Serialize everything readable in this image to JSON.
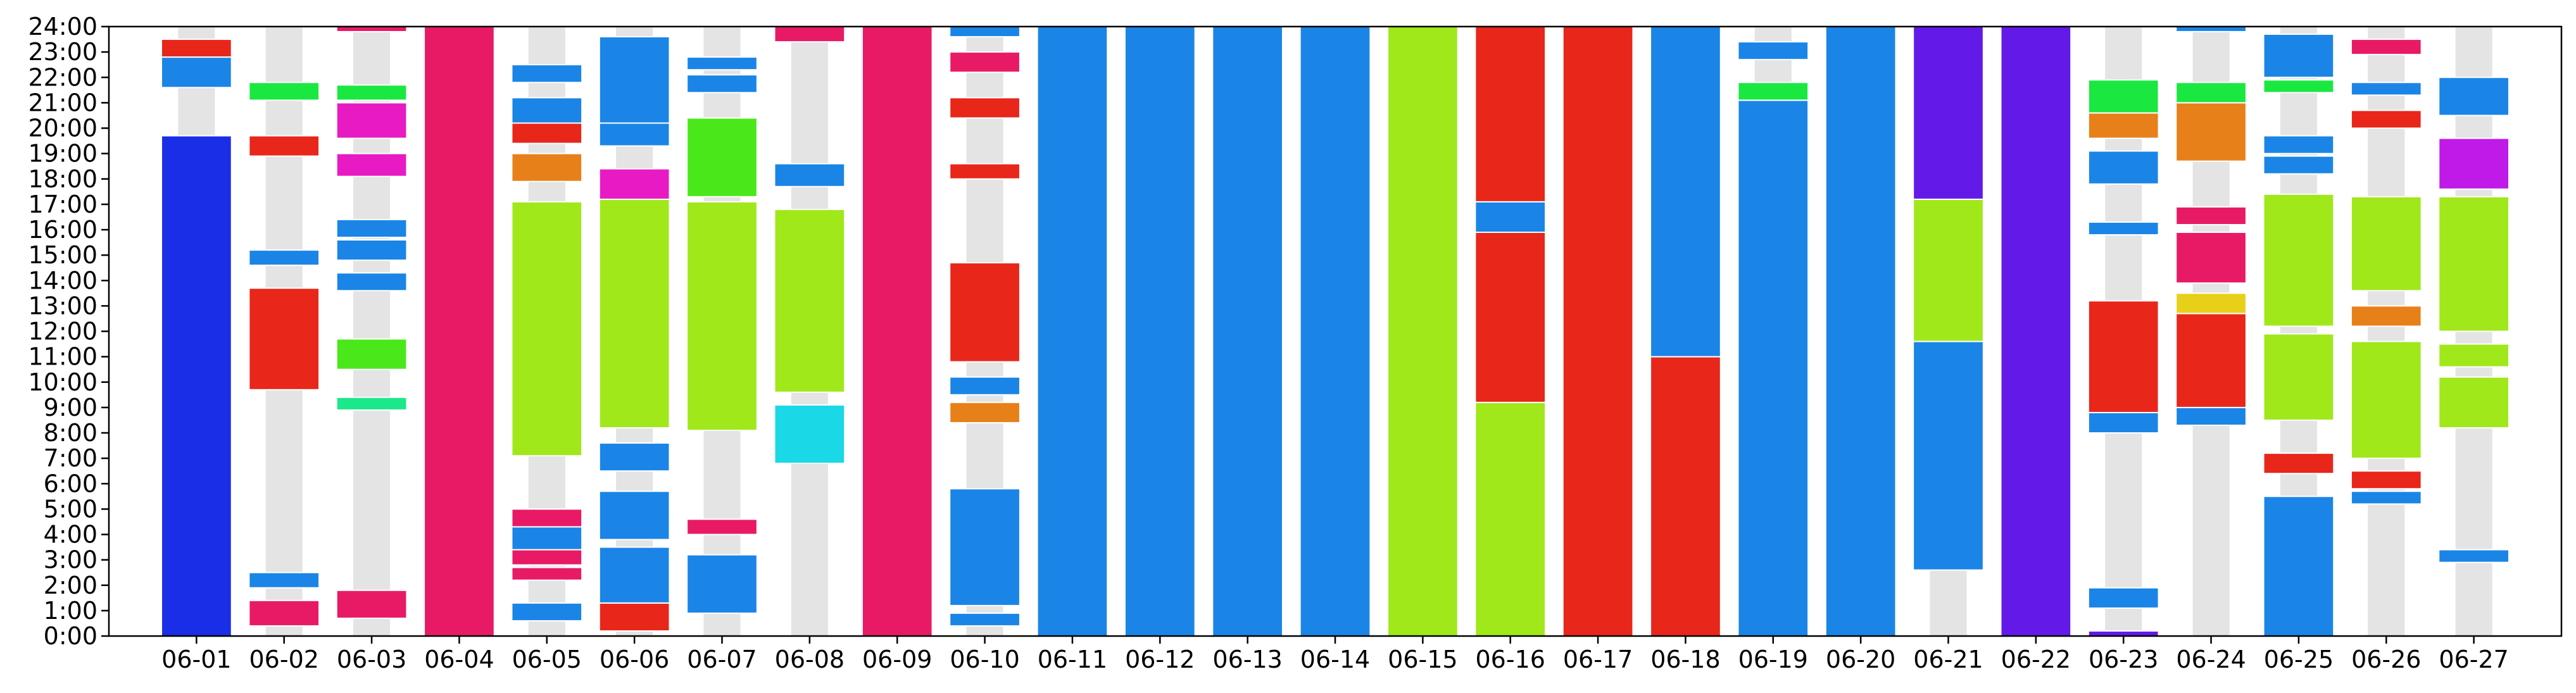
{
  "chart_data": {
    "type": "bar",
    "title": "",
    "xlabel": "",
    "ylabel": "",
    "ylim": [
      0,
      24
    ],
    "grid": false,
    "legend": "none",
    "track_color": "#e4e4e4",
    "categories": [
      "06-01",
      "06-02",
      "06-03",
      "06-04",
      "06-05",
      "06-06",
      "06-07",
      "06-08",
      "06-09",
      "06-10",
      "06-11",
      "06-12",
      "06-13",
      "06-14",
      "06-15",
      "06-16",
      "06-17",
      "06-18",
      "06-19",
      "06-20",
      "06-21",
      "06-22",
      "06-23",
      "06-24",
      "06-25",
      "06-26",
      "06-27"
    ],
    "yticks": [
      "0:00",
      "1:00",
      "2:00",
      "3:00",
      "4:00",
      "5:00",
      "6:00",
      "7:00",
      "8:00",
      "9:00",
      "10:00",
      "11:00",
      "12:00",
      "13:00",
      "14:00",
      "15:00",
      "16:00",
      "17:00",
      "18:00",
      "19:00",
      "20:00",
      "21:00",
      "22:00",
      "23:00",
      "24:00"
    ],
    "days": [
      {
        "date": "06-01",
        "segments": [
          {
            "start": 0,
            "end": 19.7,
            "color": "#1a2ee8"
          },
          {
            "start": 21.6,
            "end": 22.8,
            "color": "#1a85e6"
          },
          {
            "start": 22.8,
            "end": 23.5,
            "color": "#e8261a"
          }
        ]
      },
      {
        "date": "06-02",
        "segments": [
          {
            "start": 0.4,
            "end": 1.4,
            "color": "#e81a66"
          },
          {
            "start": 1.9,
            "end": 2.5,
            "color": "#1a85e6"
          },
          {
            "start": 9.7,
            "end": 13.7,
            "color": "#e8261a"
          },
          {
            "start": 14.6,
            "end": 15.2,
            "color": "#1a85e6"
          },
          {
            "start": 18.9,
            "end": 19.7,
            "color": "#e8261a"
          },
          {
            "start": 21.1,
            "end": 21.8,
            "color": "#1ae840"
          }
        ]
      },
      {
        "date": "06-03",
        "segments": [
          {
            "start": 0.7,
            "end": 1.8,
            "color": "#e81a66"
          },
          {
            "start": 8.9,
            "end": 9.4,
            "color": "#1ae88b"
          },
          {
            "start": 10.5,
            "end": 11.7,
            "color": "#4ae81a"
          },
          {
            "start": 13.6,
            "end": 14.3,
            "color": "#1a85e6"
          },
          {
            "start": 14.8,
            "end": 15.6,
            "color": "#1a85e6"
          },
          {
            "start": 15.7,
            "end": 16.4,
            "color": "#1a85e6"
          },
          {
            "start": 18.1,
            "end": 19.0,
            "color": "#e81ac4"
          },
          {
            "start": 19.6,
            "end": 21.0,
            "color": "#e81ac4"
          },
          {
            "start": 21.1,
            "end": 21.7,
            "color": "#1ae840"
          },
          {
            "start": 23.8,
            "end": 24.0,
            "color": "#e81a66"
          }
        ]
      },
      {
        "date": "06-04",
        "segments": [
          {
            "start": 0,
            "end": 24,
            "color": "#e81a66"
          }
        ]
      },
      {
        "date": "06-05",
        "segments": [
          {
            "start": 0.6,
            "end": 1.3,
            "color": "#1a85e6"
          },
          {
            "start": 2.2,
            "end": 2.7,
            "color": "#e81a66"
          },
          {
            "start": 2.8,
            "end": 3.4,
            "color": "#e81a66"
          },
          {
            "start": 3.4,
            "end": 4.3,
            "color": "#1a85e6"
          },
          {
            "start": 4.3,
            "end": 5.0,
            "color": "#e81a66"
          },
          {
            "start": 7.1,
            "end": 17.1,
            "color": "#a0e81a"
          },
          {
            "start": 17.9,
            "end": 19.0,
            "color": "#e8801a"
          },
          {
            "start": 19.4,
            "end": 20.2,
            "color": "#e8261a"
          },
          {
            "start": 20.2,
            "end": 21.2,
            "color": "#1a85e6"
          },
          {
            "start": 21.8,
            "end": 22.5,
            "color": "#1a85e6"
          }
        ]
      },
      {
        "date": "06-06",
        "segments": [
          {
            "start": 0.2,
            "end": 1.3,
            "color": "#e8261a"
          },
          {
            "start": 1.3,
            "end": 3.5,
            "color": "#1a85e6"
          },
          {
            "start": 3.8,
            "end": 5.7,
            "color": "#1a85e6"
          },
          {
            "start": 6.5,
            "end": 7.6,
            "color": "#1a85e6"
          },
          {
            "start": 8.2,
            "end": 17.2,
            "color": "#a0e81a"
          },
          {
            "start": 17.2,
            "end": 18.4,
            "color": "#e81ac4"
          },
          {
            "start": 19.3,
            "end": 20.2,
            "color": "#1a85e6"
          },
          {
            "start": 20.2,
            "end": 23.6,
            "color": "#1a85e6"
          }
        ]
      },
      {
        "date": "06-07",
        "segments": [
          {
            "start": 0.9,
            "end": 3.2,
            "color": "#1a85e6"
          },
          {
            "start": 4.0,
            "end": 4.6,
            "color": "#e81a66"
          },
          {
            "start": 8.1,
            "end": 17.1,
            "color": "#a0e81a"
          },
          {
            "start": 17.3,
            "end": 20.4,
            "color": "#4ae81a"
          },
          {
            "start": 21.4,
            "end": 22.1,
            "color": "#1a85e6"
          },
          {
            "start": 22.3,
            "end": 22.8,
            "color": "#1a85e6"
          }
        ]
      },
      {
        "date": "06-08",
        "segments": [
          {
            "start": 6.8,
            "end": 9.1,
            "color": "#1ad8e6"
          },
          {
            "start": 9.6,
            "end": 16.8,
            "color": "#a0e81a"
          },
          {
            "start": 17.7,
            "end": 18.6,
            "color": "#1a85e6"
          },
          {
            "start": 23.4,
            "end": 24.0,
            "color": "#e81a66"
          }
        ]
      },
      {
        "date": "06-09",
        "segments": [
          {
            "start": 0,
            "end": 24,
            "color": "#e81a66"
          }
        ]
      },
      {
        "date": "06-10",
        "segments": [
          {
            "start": 0.4,
            "end": 0.9,
            "color": "#1a85e6"
          },
          {
            "start": 1.2,
            "end": 5.8,
            "color": "#1a85e6"
          },
          {
            "start": 8.4,
            "end": 9.2,
            "color": "#e8801a"
          },
          {
            "start": 9.5,
            "end": 10.2,
            "color": "#1a85e6"
          },
          {
            "start": 10.8,
            "end": 14.7,
            "color": "#e8261a"
          },
          {
            "start": 18.0,
            "end": 18.6,
            "color": "#e8261a"
          },
          {
            "start": 20.4,
            "end": 21.2,
            "color": "#e8261a"
          },
          {
            "start": 22.2,
            "end": 23.0,
            "color": "#e81a66"
          },
          {
            "start": 23.6,
            "end": 24.0,
            "color": "#1a85e6"
          }
        ]
      },
      {
        "date": "06-11",
        "segments": [
          {
            "start": 0,
            "end": 24,
            "color": "#1a85e6"
          }
        ]
      },
      {
        "date": "06-12",
        "segments": [
          {
            "start": 0,
            "end": 24,
            "color": "#1a85e6"
          }
        ]
      },
      {
        "date": "06-13",
        "segments": [
          {
            "start": 0,
            "end": 24,
            "color": "#1a85e6"
          }
        ]
      },
      {
        "date": "06-14",
        "segments": [
          {
            "start": 0,
            "end": 24,
            "color": "#1a85e6"
          }
        ]
      },
      {
        "date": "06-15",
        "segments": [
          {
            "start": 0,
            "end": 24,
            "color": "#a0e81a"
          }
        ]
      },
      {
        "date": "06-16",
        "segments": [
          {
            "start": 0,
            "end": 9.2,
            "color": "#a0e81a"
          },
          {
            "start": 9.2,
            "end": 15.9,
            "color": "#e8261a"
          },
          {
            "start": 15.9,
            "end": 17.1,
            "color": "#1a85e6"
          },
          {
            "start": 17.1,
            "end": 24.0,
            "color": "#e8261a"
          }
        ]
      },
      {
        "date": "06-17",
        "segments": [
          {
            "start": 0,
            "end": 24,
            "color": "#e8261a"
          }
        ]
      },
      {
        "date": "06-18",
        "segments": [
          {
            "start": 0,
            "end": 11.0,
            "color": "#e8261a"
          },
          {
            "start": 11.0,
            "end": 24.0,
            "color": "#1a85e6"
          }
        ]
      },
      {
        "date": "06-19",
        "segments": [
          {
            "start": 0,
            "end": 21.1,
            "color": "#1a85e6"
          },
          {
            "start": 21.1,
            "end": 21.8,
            "color": "#1ae840"
          },
          {
            "start": 22.7,
            "end": 23.4,
            "color": "#1a85e6"
          }
        ]
      },
      {
        "date": "06-20",
        "segments": [
          {
            "start": 0,
            "end": 24,
            "color": "#1a85e6"
          }
        ]
      },
      {
        "date": "06-21",
        "segments": [
          {
            "start": 2.6,
            "end": 11.6,
            "color": "#1a85e6"
          },
          {
            "start": 11.6,
            "end": 17.2,
            "color": "#a0e81a"
          },
          {
            "start": 17.2,
            "end": 24.0,
            "color": "#631ae8"
          }
        ]
      },
      {
        "date": "06-22",
        "segments": [
          {
            "start": 0,
            "end": 24,
            "color": "#631ae8"
          }
        ]
      },
      {
        "date": "06-23",
        "segments": [
          {
            "start": 0,
            "end": 0.2,
            "color": "#631ae8"
          },
          {
            "start": 1.1,
            "end": 1.9,
            "color": "#1a85e6"
          },
          {
            "start": 8.0,
            "end": 8.8,
            "color": "#1a85e6"
          },
          {
            "start": 8.8,
            "end": 13.2,
            "color": "#e8261a"
          },
          {
            "start": 15.8,
            "end": 16.3,
            "color": "#1a85e6"
          },
          {
            "start": 17.8,
            "end": 19.1,
            "color": "#1a85e6"
          },
          {
            "start": 19.6,
            "end": 20.6,
            "color": "#e8801a"
          },
          {
            "start": 20.6,
            "end": 21.9,
            "color": "#1ae840"
          }
        ]
      },
      {
        "date": "06-24",
        "segments": [
          {
            "start": 8.3,
            "end": 9.0,
            "color": "#1a85e6"
          },
          {
            "start": 9.0,
            "end": 12.7,
            "color": "#e8261a"
          },
          {
            "start": 12.7,
            "end": 13.5,
            "color": "#e8d01a"
          },
          {
            "start": 13.9,
            "end": 15.9,
            "color": "#e81a66"
          },
          {
            "start": 16.2,
            "end": 16.9,
            "color": "#e81a66"
          },
          {
            "start": 18.7,
            "end": 21.0,
            "color": "#e8801a"
          },
          {
            "start": 21.0,
            "end": 21.8,
            "color": "#1ae840"
          },
          {
            "start": 23.8,
            "end": 24.0,
            "color": "#1a85e6"
          }
        ]
      },
      {
        "date": "06-25",
        "segments": [
          {
            "start": 0,
            "end": 5.5,
            "color": "#1a85e6"
          },
          {
            "start": 6.4,
            "end": 7.2,
            "color": "#e8261a"
          },
          {
            "start": 8.5,
            "end": 11.9,
            "color": "#a0e81a"
          },
          {
            "start": 12.2,
            "end": 17.4,
            "color": "#a0e81a"
          },
          {
            "start": 18.2,
            "end": 18.9,
            "color": "#1a85e6"
          },
          {
            "start": 19.0,
            "end": 19.7,
            "color": "#1a85e6"
          },
          {
            "start": 21.4,
            "end": 21.9,
            "color": "#1ae840"
          },
          {
            "start": 22.0,
            "end": 23.7,
            "color": "#1a85e6"
          }
        ]
      },
      {
        "date": "06-26",
        "segments": [
          {
            "start": 5.2,
            "end": 5.7,
            "color": "#1a85e6"
          },
          {
            "start": 5.8,
            "end": 6.5,
            "color": "#e8261a"
          },
          {
            "start": 7.0,
            "end": 11.6,
            "color": "#a0e81a"
          },
          {
            "start": 12.2,
            "end": 13.0,
            "color": "#e8801a"
          },
          {
            "start": 13.6,
            "end": 17.3,
            "color": "#a0e81a"
          },
          {
            "start": 20.0,
            "end": 20.7,
            "color": "#e8261a"
          },
          {
            "start": 21.3,
            "end": 21.8,
            "color": "#1a85e6"
          },
          {
            "start": 22.9,
            "end": 23.5,
            "color": "#e81a66"
          }
        ]
      },
      {
        "date": "06-27",
        "segments": [
          {
            "start": 2.9,
            "end": 3.4,
            "color": "#1a85e6"
          },
          {
            "start": 8.2,
            "end": 10.2,
            "color": "#a0e81a"
          },
          {
            "start": 10.6,
            "end": 11.5,
            "color": "#a0e81a"
          },
          {
            "start": 12.0,
            "end": 17.3,
            "color": "#a0e81a"
          },
          {
            "start": 17.6,
            "end": 19.6,
            "color": "#bf1ae8"
          },
          {
            "start": 20.5,
            "end": 22.0,
            "color": "#1a85e6"
          }
        ]
      }
    ]
  }
}
